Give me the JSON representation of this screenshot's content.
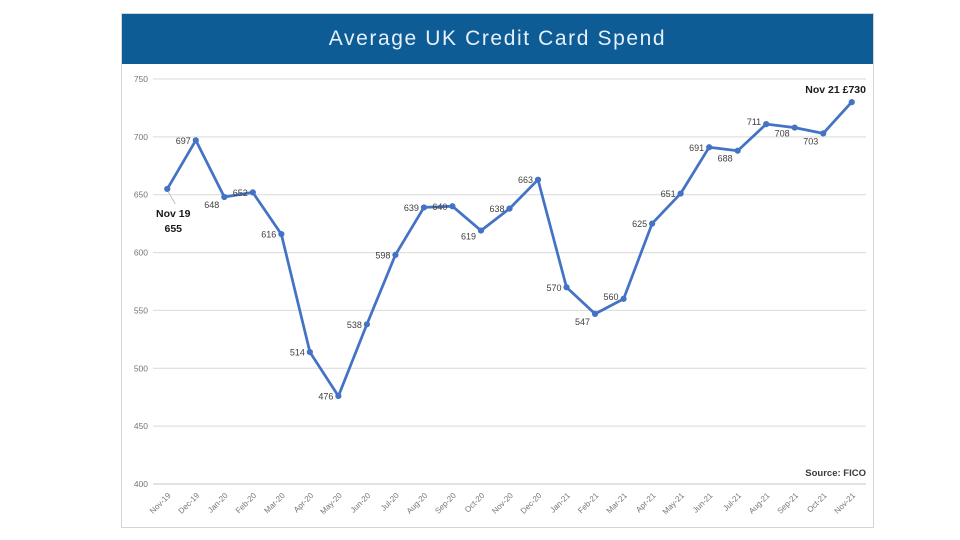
{
  "header": {
    "title": "Average UK Credit Card Spend"
  },
  "source_label": "Source: FICO",
  "annotations": {
    "first_point": {
      "line1": "Nov 19",
      "line2": "655"
    },
    "last_point": "Nov 21 £730"
  },
  "colors": {
    "header_bg": "#0d5c96",
    "header_text": "#e7f0f8",
    "line": "#4472c4",
    "marker": "#4472c4",
    "data_label": "#404040",
    "annotation_text": "#1a1a1a",
    "axis_text": "#757575",
    "gridline": "#d9d9d9",
    "baseline": "#c6c6c6",
    "leader_line": "#bfbfbf",
    "source_text": "#3b3b3b"
  },
  "chart_data": {
    "type": "line",
    "title": "Average UK Credit Card Spend",
    "categories": [
      "Nov-19",
      "Dec-19",
      "Jan-20",
      "Feb-20",
      "Mar-20",
      "Apr-20",
      "May-20",
      "Jun-20",
      "Jul-20",
      "Aug-20",
      "Sep-20",
      "Oct-20",
      "Nov-20",
      "Dec-20",
      "Jan-21",
      "Feb-21",
      "Mar-21",
      "Apr-21",
      "May-21",
      "Jun-21",
      "Jul-21",
      "Aug-21",
      "Sep-21",
      "Oct-21",
      "Nov-21"
    ],
    "series": [
      {
        "name": "Average UK Credit Card Spend",
        "values": [
          655,
          697,
          648,
          652,
          616,
          514,
          476,
          538,
          598,
          639,
          640,
          619,
          638,
          663,
          570,
          547,
          560,
          625,
          651,
          691,
          688,
          711,
          708,
          703,
          730
        ]
      }
    ],
    "xlabel": "",
    "ylabel": "",
    "ylim": [
      400,
      750
    ],
    "ytick_step": 50,
    "grid": "horizontal-only",
    "legend": "none",
    "marker": "circle",
    "data_labels": "shown on all points; first point labeled 'Nov 19 655' and last point labeled 'Nov 21 £730' as bold callouts",
    "source": "Source: FICO"
  }
}
